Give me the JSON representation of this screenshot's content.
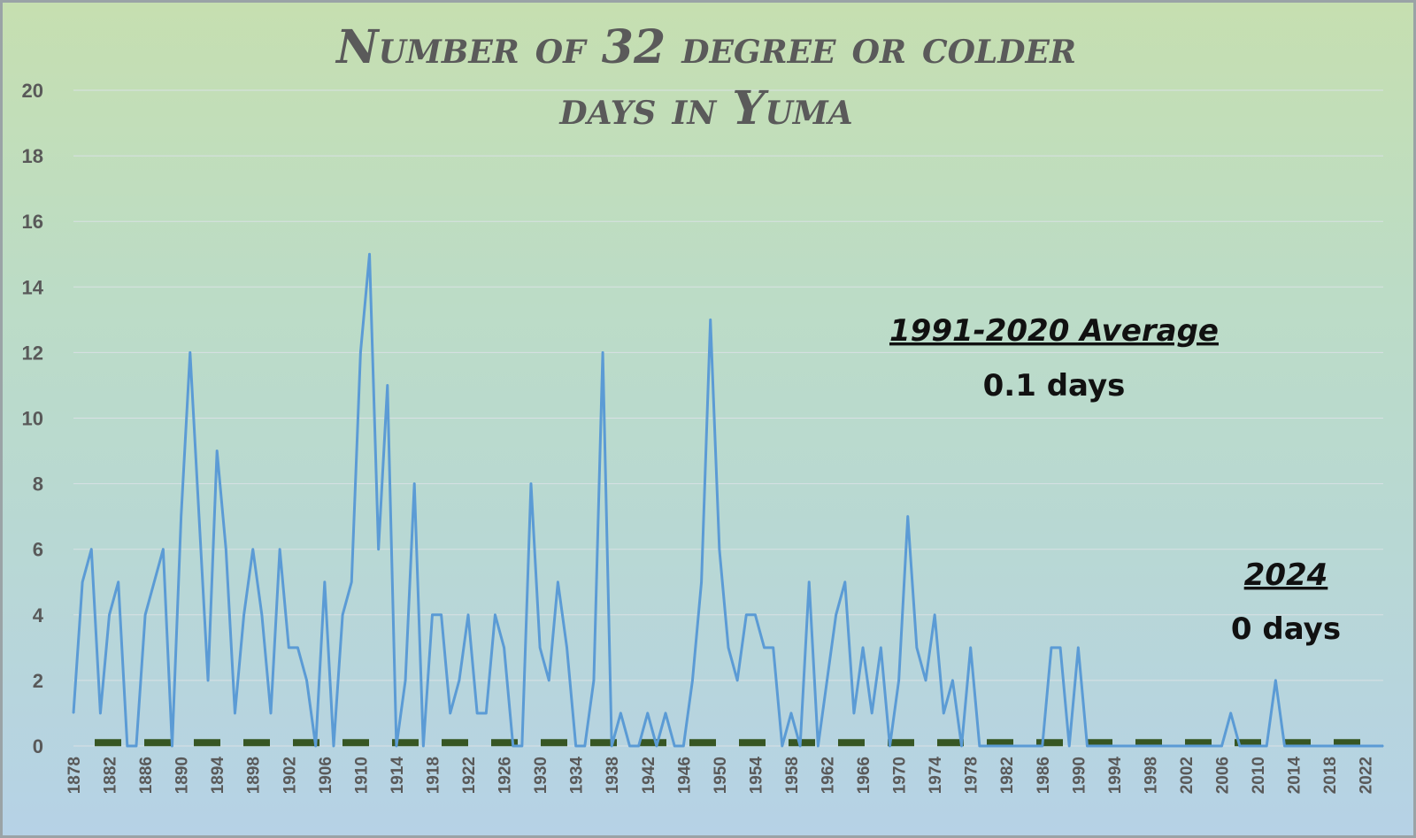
{
  "chart_data": {
    "type": "line",
    "title_line1": "Number of 32 degree or colder",
    "title_line2": "days in Yuma",
    "ylim": [
      0,
      20
    ],
    "y_ticks": [
      0,
      2,
      4,
      6,
      8,
      10,
      12,
      14,
      16,
      18,
      20
    ],
    "x_tick_labels": [
      "1878",
      "1882",
      "1886",
      "1890",
      "1894",
      "1898",
      "1902",
      "1906",
      "1910",
      "1914",
      "1918",
      "1922",
      "1926",
      "1930",
      "1934",
      "1938",
      "1942",
      "1946",
      "1950",
      "1954",
      "1958",
      "1962",
      "1966",
      "1970",
      "1974",
      "1978",
      "1982",
      "1986",
      "1990",
      "1994",
      "1998",
      "2002",
      "2006",
      "2010",
      "2014",
      "2018",
      "2022"
    ],
    "x_start": 1878,
    "x_end": 2024,
    "colors": {
      "series": "#5b9bd5",
      "average": "#375623",
      "gridline": "#d9e1e4",
      "title": "#5a5a5a",
      "ticks": "#595959"
    },
    "series": [
      {
        "values": [
          1,
          5,
          6,
          1,
          4,
          5,
          0,
          0,
          4,
          5,
          6,
          0,
          7,
          12,
          7,
          2,
          9,
          6,
          1,
          4,
          6,
          4,
          1,
          6,
          3,
          3,
          2,
          0,
          5,
          0,
          4,
          5,
          12,
          15,
          6,
          11,
          0,
          2,
          8,
          0,
          4,
          4,
          1,
          2,
          4,
          1,
          1,
          4,
          3,
          0,
          0,
          8,
          3,
          2,
          5,
          3,
          0,
          0,
          2,
          12,
          0,
          1,
          0,
          0,
          1,
          0,
          1,
          0,
          0,
          2,
          5,
          13,
          6,
          3,
          2,
          4,
          4,
          3,
          3,
          0,
          1,
          0,
          5,
          0,
          2,
          4,
          5,
          1,
          3,
          1,
          3,
          0,
          2,
          7,
          3,
          2,
          4,
          1,
          2,
          0,
          3,
          0,
          0,
          0,
          0,
          0,
          0,
          0,
          0,
          3,
          3,
          0,
          3,
          0,
          0,
          0,
          0,
          0,
          0,
          0,
          0,
          0,
          0,
          0,
          0,
          0,
          0,
          0,
          0,
          1,
          0,
          0,
          0,
          0,
          2,
          0,
          0,
          0,
          0,
          0,
          0,
          0,
          0,
          0,
          0,
          0,
          0
        ]
      },
      {
        "name": "1991-2020 Average",
        "value": 0.1,
        "style": "dashed"
      }
    ],
    "annotations": [
      {
        "head": "1991-2020 Average",
        "value": "0.1 days"
      },
      {
        "head": "2024",
        "value": "0 days"
      }
    ]
  }
}
